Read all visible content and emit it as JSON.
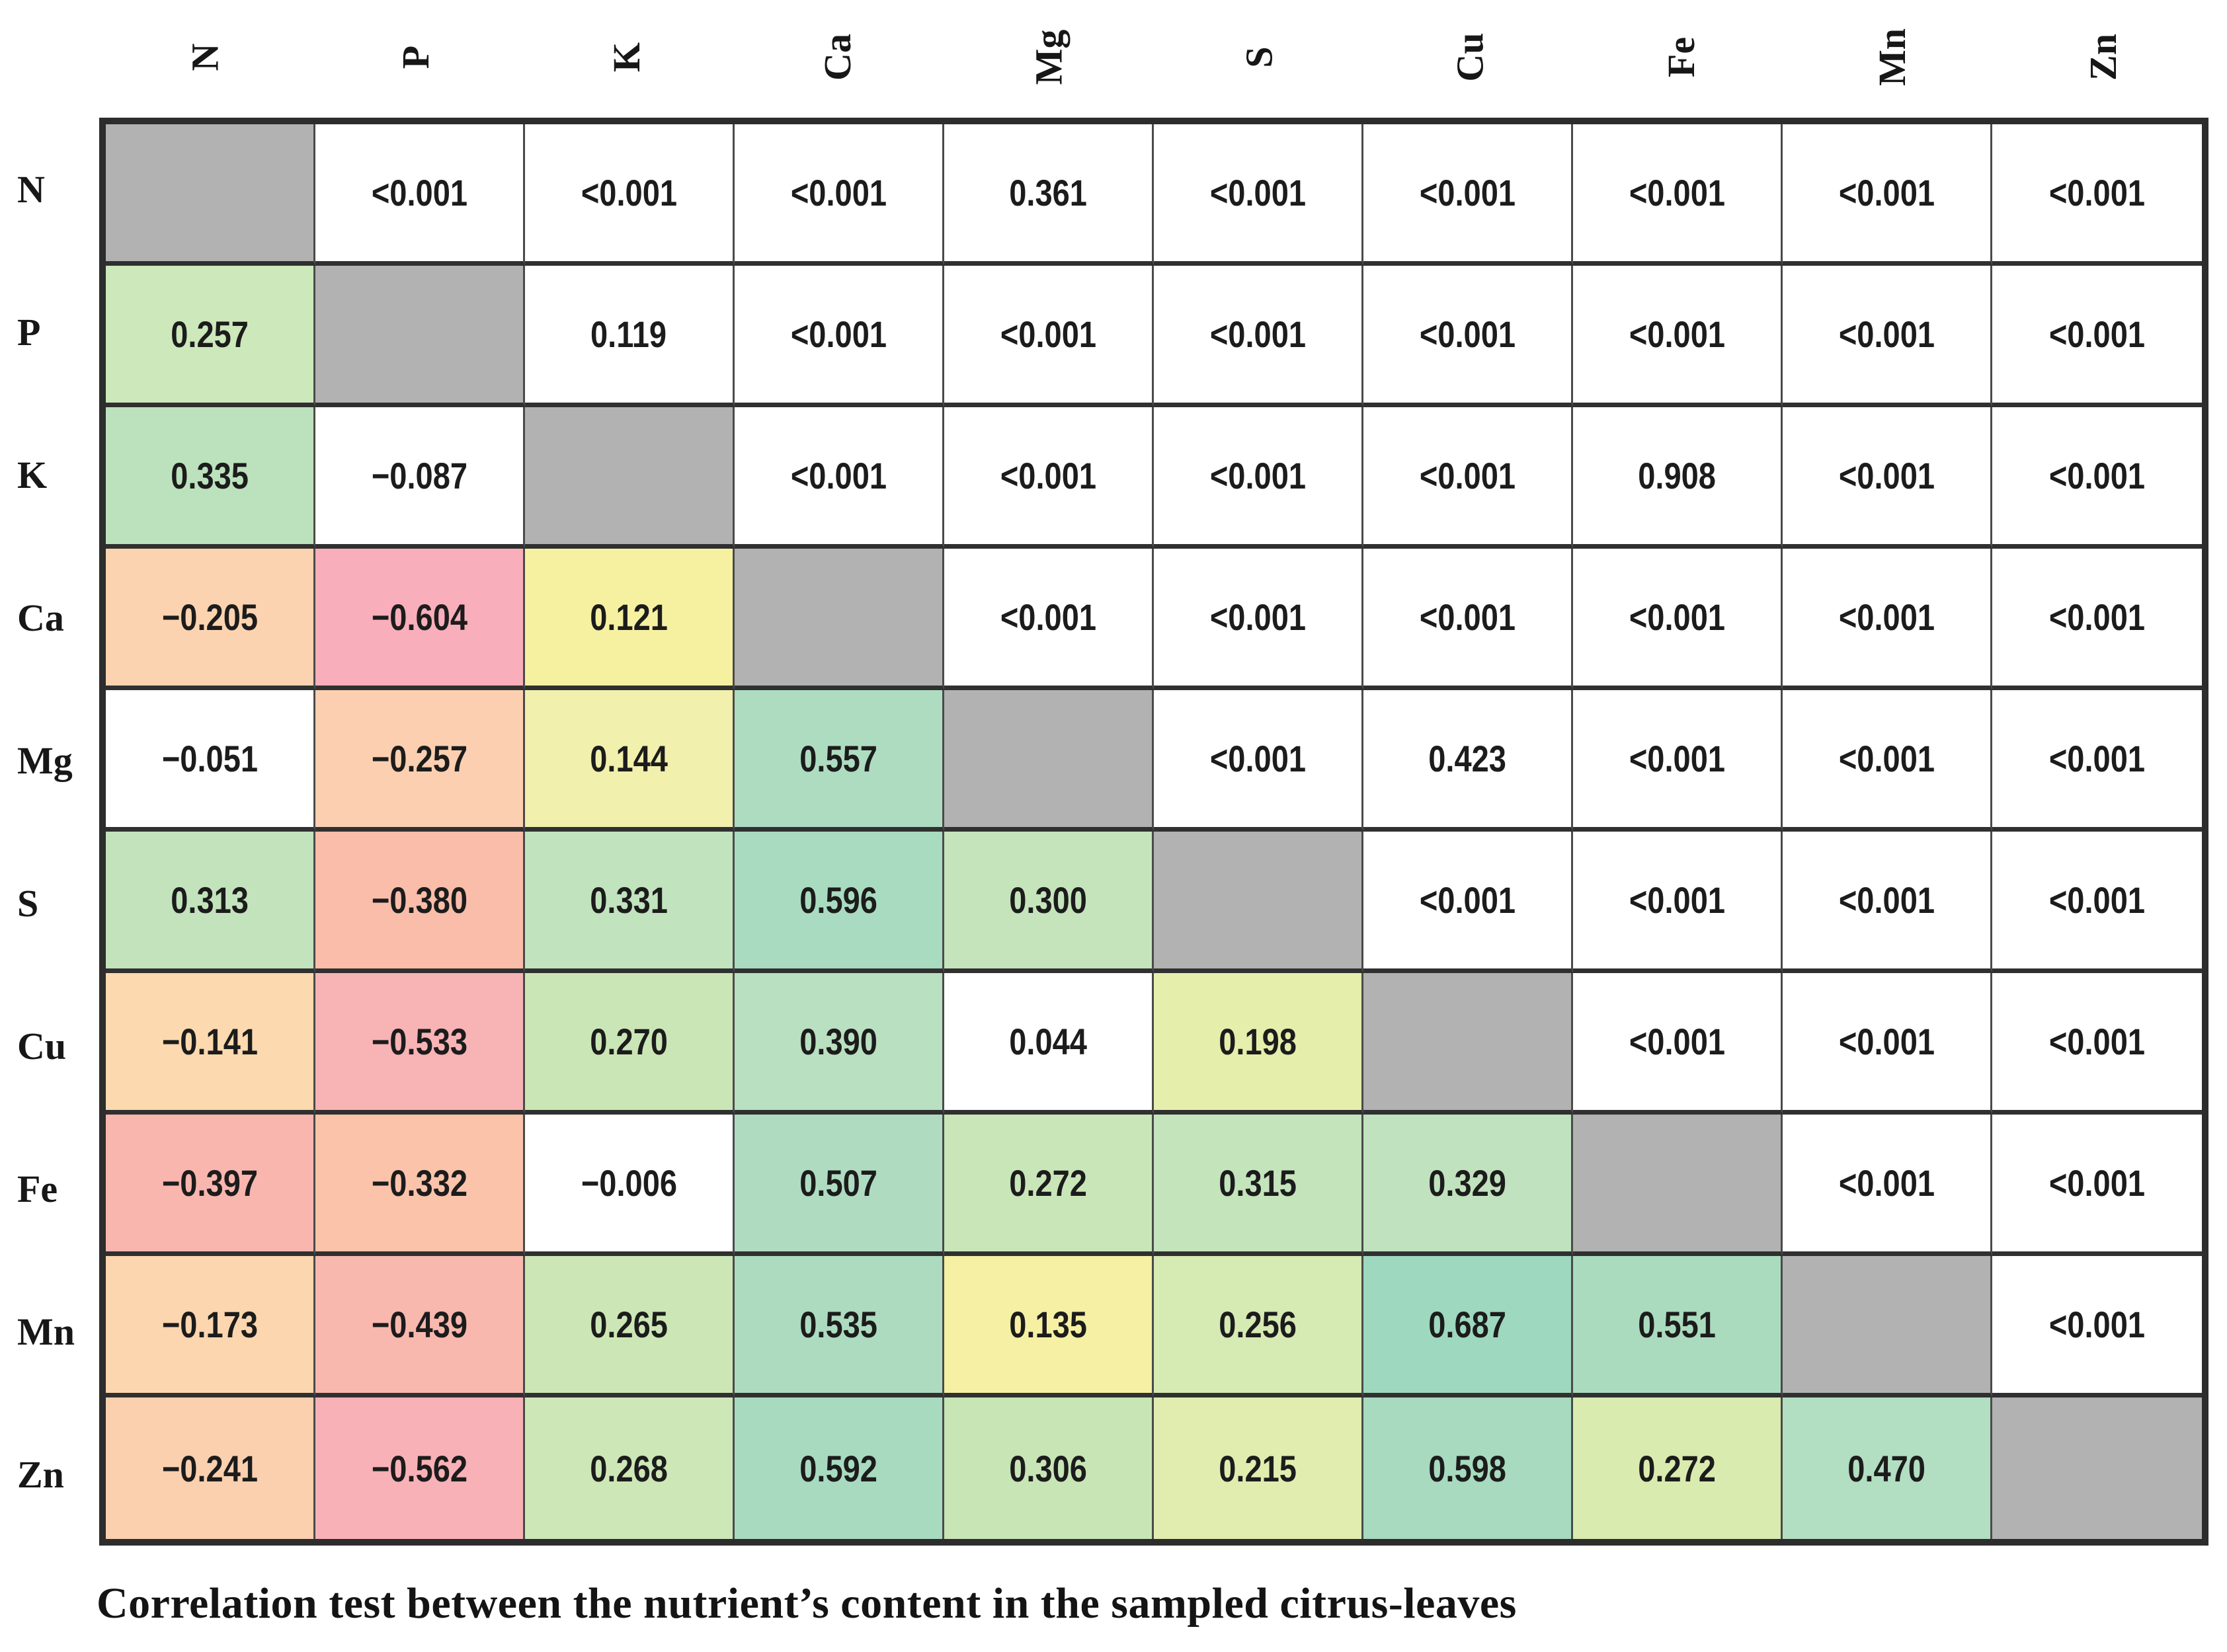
{
  "table": {
    "columns": [
      "N",
      "P",
      "K",
      "Ca",
      "Mg",
      "S",
      "Cu",
      "Fe",
      "Mn",
      "Zn"
    ],
    "diagonal_color": "#b2b2b2",
    "rows": [
      {
        "label": "N",
        "cells": [
          {
            "t": "",
            "bg": "diag"
          },
          {
            "t": "<0.001",
            "bg": "#ffffff"
          },
          {
            "t": "<0.001",
            "bg": "#ffffff"
          },
          {
            "t": "<0.001",
            "bg": "#ffffff"
          },
          {
            "t": "0.361",
            "bg": "#ffffff"
          },
          {
            "t": "<0.001",
            "bg": "#ffffff"
          },
          {
            "t": "<0.001",
            "bg": "#ffffff"
          },
          {
            "t": "<0.001",
            "bg": "#ffffff"
          },
          {
            "t": "<0.001",
            "bg": "#ffffff"
          },
          {
            "t": "<0.001",
            "bg": "#ffffff"
          }
        ]
      },
      {
        "label": "P",
        "cells": [
          {
            "t": "0.257",
            "bg": "#cde8ba"
          },
          {
            "t": "",
            "bg": "diag"
          },
          {
            "t": "0.119",
            "bg": "#ffffff"
          },
          {
            "t": "<0.001",
            "bg": "#ffffff"
          },
          {
            "t": "<0.001",
            "bg": "#ffffff"
          },
          {
            "t": "<0.001",
            "bg": "#ffffff"
          },
          {
            "t": "<0.001",
            "bg": "#ffffff"
          },
          {
            "t": "<0.001",
            "bg": "#ffffff"
          },
          {
            "t": "<0.001",
            "bg": "#ffffff"
          },
          {
            "t": "<0.001",
            "bg": "#ffffff"
          }
        ]
      },
      {
        "label": "K",
        "cells": [
          {
            "t": "0.335",
            "bg": "#bce2bd"
          },
          {
            "t": "−0.087",
            "bg": "#ffffff"
          },
          {
            "t": "",
            "bg": "diag"
          },
          {
            "t": "<0.001",
            "bg": "#ffffff"
          },
          {
            "t": "<0.001",
            "bg": "#ffffff"
          },
          {
            "t": "<0.001",
            "bg": "#ffffff"
          },
          {
            "t": "<0.001",
            "bg": "#ffffff"
          },
          {
            "t": "0.908",
            "bg": "#ffffff"
          },
          {
            "t": "<0.001",
            "bg": "#ffffff"
          },
          {
            "t": "<0.001",
            "bg": "#ffffff"
          }
        ]
      },
      {
        "label": "Ca",
        "cells": [
          {
            "t": "−0.205",
            "bg": "#fcd3b0"
          },
          {
            "t": "−0.604",
            "bg": "#f8aebb"
          },
          {
            "t": "0.121",
            "bg": "#f6f1a1"
          },
          {
            "t": "",
            "bg": "diag"
          },
          {
            "t": "<0.001",
            "bg": "#ffffff"
          },
          {
            "t": "<0.001",
            "bg": "#ffffff"
          },
          {
            "t": "<0.001",
            "bg": "#ffffff"
          },
          {
            "t": "<0.001",
            "bg": "#ffffff"
          },
          {
            "t": "<0.001",
            "bg": "#ffffff"
          },
          {
            "t": "<0.001",
            "bg": "#ffffff"
          }
        ]
      },
      {
        "label": "Mg",
        "cells": [
          {
            "t": "−0.051",
            "bg": "#ffffff"
          },
          {
            "t": "−0.257",
            "bg": "#fbcfb0"
          },
          {
            "t": "0.144",
            "bg": "#f1f0ac"
          },
          {
            "t": "0.557",
            "bg": "#aedcc0"
          },
          {
            "t": "",
            "bg": "diag"
          },
          {
            "t": "<0.001",
            "bg": "#ffffff"
          },
          {
            "t": "0.423",
            "bg": "#ffffff"
          },
          {
            "t": "<0.001",
            "bg": "#ffffff"
          },
          {
            "t": "<0.001",
            "bg": "#ffffff"
          },
          {
            "t": "<0.001",
            "bg": "#ffffff"
          }
        ]
      },
      {
        "label": "S",
        "cells": [
          {
            "t": "0.313",
            "bg": "#c3e3bd"
          },
          {
            "t": "−0.380",
            "bg": "#f9bda9"
          },
          {
            "t": "0.331",
            "bg": "#c1e3be"
          },
          {
            "t": "0.596",
            "bg": "#a9dbc0"
          },
          {
            "t": "0.300",
            "bg": "#c5e4bc"
          },
          {
            "t": "",
            "bg": "diag"
          },
          {
            "t": "<0.001",
            "bg": "#ffffff"
          },
          {
            "t": "<0.001",
            "bg": "#ffffff"
          },
          {
            "t": "<0.001",
            "bg": "#ffffff"
          },
          {
            "t": "<0.001",
            "bg": "#ffffff"
          }
        ]
      },
      {
        "label": "Cu",
        "cells": [
          {
            "t": "−0.141",
            "bg": "#fcd9ae"
          },
          {
            "t": "−0.533",
            "bg": "#f8b3b5"
          },
          {
            "t": "0.270",
            "bg": "#cae6b7"
          },
          {
            "t": "0.390",
            "bg": "#b9e0c0"
          },
          {
            "t": "0.044",
            "bg": "#ffffff"
          },
          {
            "t": "0.198",
            "bg": "#e5eeab"
          },
          {
            "t": "",
            "bg": "diag"
          },
          {
            "t": "<0.001",
            "bg": "#ffffff"
          },
          {
            "t": "<0.001",
            "bg": "#ffffff"
          },
          {
            "t": "<0.001",
            "bg": "#ffffff"
          }
        ]
      },
      {
        "label": "Fe",
        "cells": [
          {
            "t": "−0.397",
            "bg": "#f9b6ae"
          },
          {
            "t": "−0.332",
            "bg": "#fac3aa"
          },
          {
            "t": "−0.006",
            "bg": "#ffffff"
          },
          {
            "t": "0.507",
            "bg": "#afdcc1"
          },
          {
            "t": "0.272",
            "bg": "#c9e6b9"
          },
          {
            "t": "0.315",
            "bg": "#c4e4bb"
          },
          {
            "t": "0.329",
            "bg": "#c0e2be"
          },
          {
            "t": "",
            "bg": "diag"
          },
          {
            "t": "<0.001",
            "bg": "#ffffff"
          },
          {
            "t": "<0.001",
            "bg": "#ffffff"
          }
        ]
      },
      {
        "label": "Mn",
        "cells": [
          {
            "t": "−0.173",
            "bg": "#fcd6ae"
          },
          {
            "t": "−0.439",
            "bg": "#f9b8ae"
          },
          {
            "t": "0.265",
            "bg": "#cce7b5"
          },
          {
            "t": "0.535",
            "bg": "#acdbc0"
          },
          {
            "t": "0.135",
            "bg": "#f5f0a3"
          },
          {
            "t": "0.256",
            "bg": "#d6eab3"
          },
          {
            "t": "0.687",
            "bg": "#9ed8be"
          },
          {
            "t": "0.551",
            "bg": "#abdbbf"
          },
          {
            "t": "",
            "bg": "diag"
          },
          {
            "t": "<0.001",
            "bg": "#ffffff"
          }
        ]
      },
      {
        "label": "Zn",
        "cells": [
          {
            "t": "−0.241",
            "bg": "#fbd0af"
          },
          {
            "t": "−0.562",
            "bg": "#f8b1b7"
          },
          {
            "t": "0.268",
            "bg": "#cde7b7"
          },
          {
            "t": "0.592",
            "bg": "#a8dac0"
          },
          {
            "t": "0.306",
            "bg": "#c8e5b6"
          },
          {
            "t": "0.215",
            "bg": "#e0edaf"
          },
          {
            "t": "0.598",
            "bg": "#a7dabe"
          },
          {
            "t": "0.272",
            "bg": "#d9ebaf"
          },
          {
            "t": "0.470",
            "bg": "#b2dec1"
          },
          {
            "t": "",
            "bg": "diag"
          }
        ]
      }
    ],
    "caption": "Correlation test between the nutrient’s content in the sampled citrus-leaves"
  },
  "chart_data": {
    "type": "heatmap",
    "title": "Correlation test between the nutrient’s content in the sampled citrus-leaves",
    "variables": [
      "N",
      "P",
      "K",
      "Ca",
      "Mg",
      "S",
      "Cu",
      "Fe",
      "Mn",
      "Zn"
    ],
    "lower_triangle_metric": "correlation coefficient (r)",
    "upper_triangle_metric": "p-value",
    "diagonal": "blank (gray)",
    "r_matrix_rows": [
      [
        null,
        null,
        null,
        null,
        null,
        null,
        null,
        null,
        null,
        null
      ],
      [
        0.257,
        null,
        null,
        null,
        null,
        null,
        null,
        null,
        null,
        null
      ],
      [
        0.335,
        -0.087,
        null,
        null,
        null,
        null,
        null,
        null,
        null,
        null
      ],
      [
        -0.205,
        -0.604,
        0.121,
        null,
        null,
        null,
        null,
        null,
        null,
        null
      ],
      [
        -0.051,
        -0.257,
        0.144,
        0.557,
        null,
        null,
        null,
        null,
        null,
        null
      ],
      [
        0.313,
        -0.38,
        0.331,
        0.596,
        0.3,
        null,
        null,
        null,
        null,
        null
      ],
      [
        -0.141,
        -0.533,
        0.27,
        0.39,
        0.044,
        0.198,
        null,
        null,
        null,
        null
      ],
      [
        -0.397,
        -0.332,
        -0.006,
        0.507,
        0.272,
        0.315,
        0.329,
        null,
        null,
        null
      ],
      [
        -0.173,
        -0.439,
        0.265,
        0.535,
        0.135,
        0.256,
        0.687,
        0.551,
        null,
        null
      ],
      [
        -0.241,
        -0.562,
        0.268,
        0.592,
        0.306,
        0.215,
        0.598,
        0.272,
        0.47,
        null
      ]
    ],
    "p_matrix_rows": [
      [
        null,
        "<0.001",
        "<0.001",
        "<0.001",
        "0.361",
        "<0.001",
        "<0.001",
        "<0.001",
        "<0.001",
        "<0.001"
      ],
      [
        null,
        null,
        "0.119",
        "<0.001",
        "<0.001",
        "<0.001",
        "<0.001",
        "<0.001",
        "<0.001",
        "<0.001"
      ],
      [
        null,
        null,
        null,
        "<0.001",
        "<0.001",
        "<0.001",
        "<0.001",
        "0.908",
        "<0.001",
        "<0.001"
      ],
      [
        null,
        null,
        null,
        null,
        "<0.001",
        "<0.001",
        "<0.001",
        "<0.001",
        "<0.001",
        "<0.001"
      ],
      [
        null,
        null,
        null,
        null,
        null,
        "<0.001",
        "0.423",
        "<0.001",
        "<0.001",
        "<0.001"
      ],
      [
        null,
        null,
        null,
        null,
        null,
        null,
        "<0.001",
        "<0.001",
        "<0.001",
        "<0.001"
      ],
      [
        null,
        null,
        null,
        null,
        null,
        null,
        null,
        "<0.001",
        "<0.001",
        "<0.001"
      ],
      [
        null,
        null,
        null,
        null,
        null,
        null,
        null,
        null,
        "<0.001",
        "<0.001"
      ],
      [
        null,
        null,
        null,
        null,
        null,
        null,
        null,
        null,
        null,
        "<0.001"
      ],
      [
        null,
        null,
        null,
        null,
        null,
        null,
        null,
        null,
        null,
        null
      ]
    ],
    "legend_colors": {
      "strong_positive": "#9ed8be",
      "moderate_positive": "#b9e0c0",
      "weak_positive": "#f6f1a1",
      "near_zero": "#ffffff",
      "weak_negative": "#fcd3b0",
      "strong_negative": "#f8aebb",
      "diagonal": "#b2b2b2"
    },
    "layout": "matrix 10x10, row/column labels are the same nutrient list, caption below table, bottom-left"
  }
}
